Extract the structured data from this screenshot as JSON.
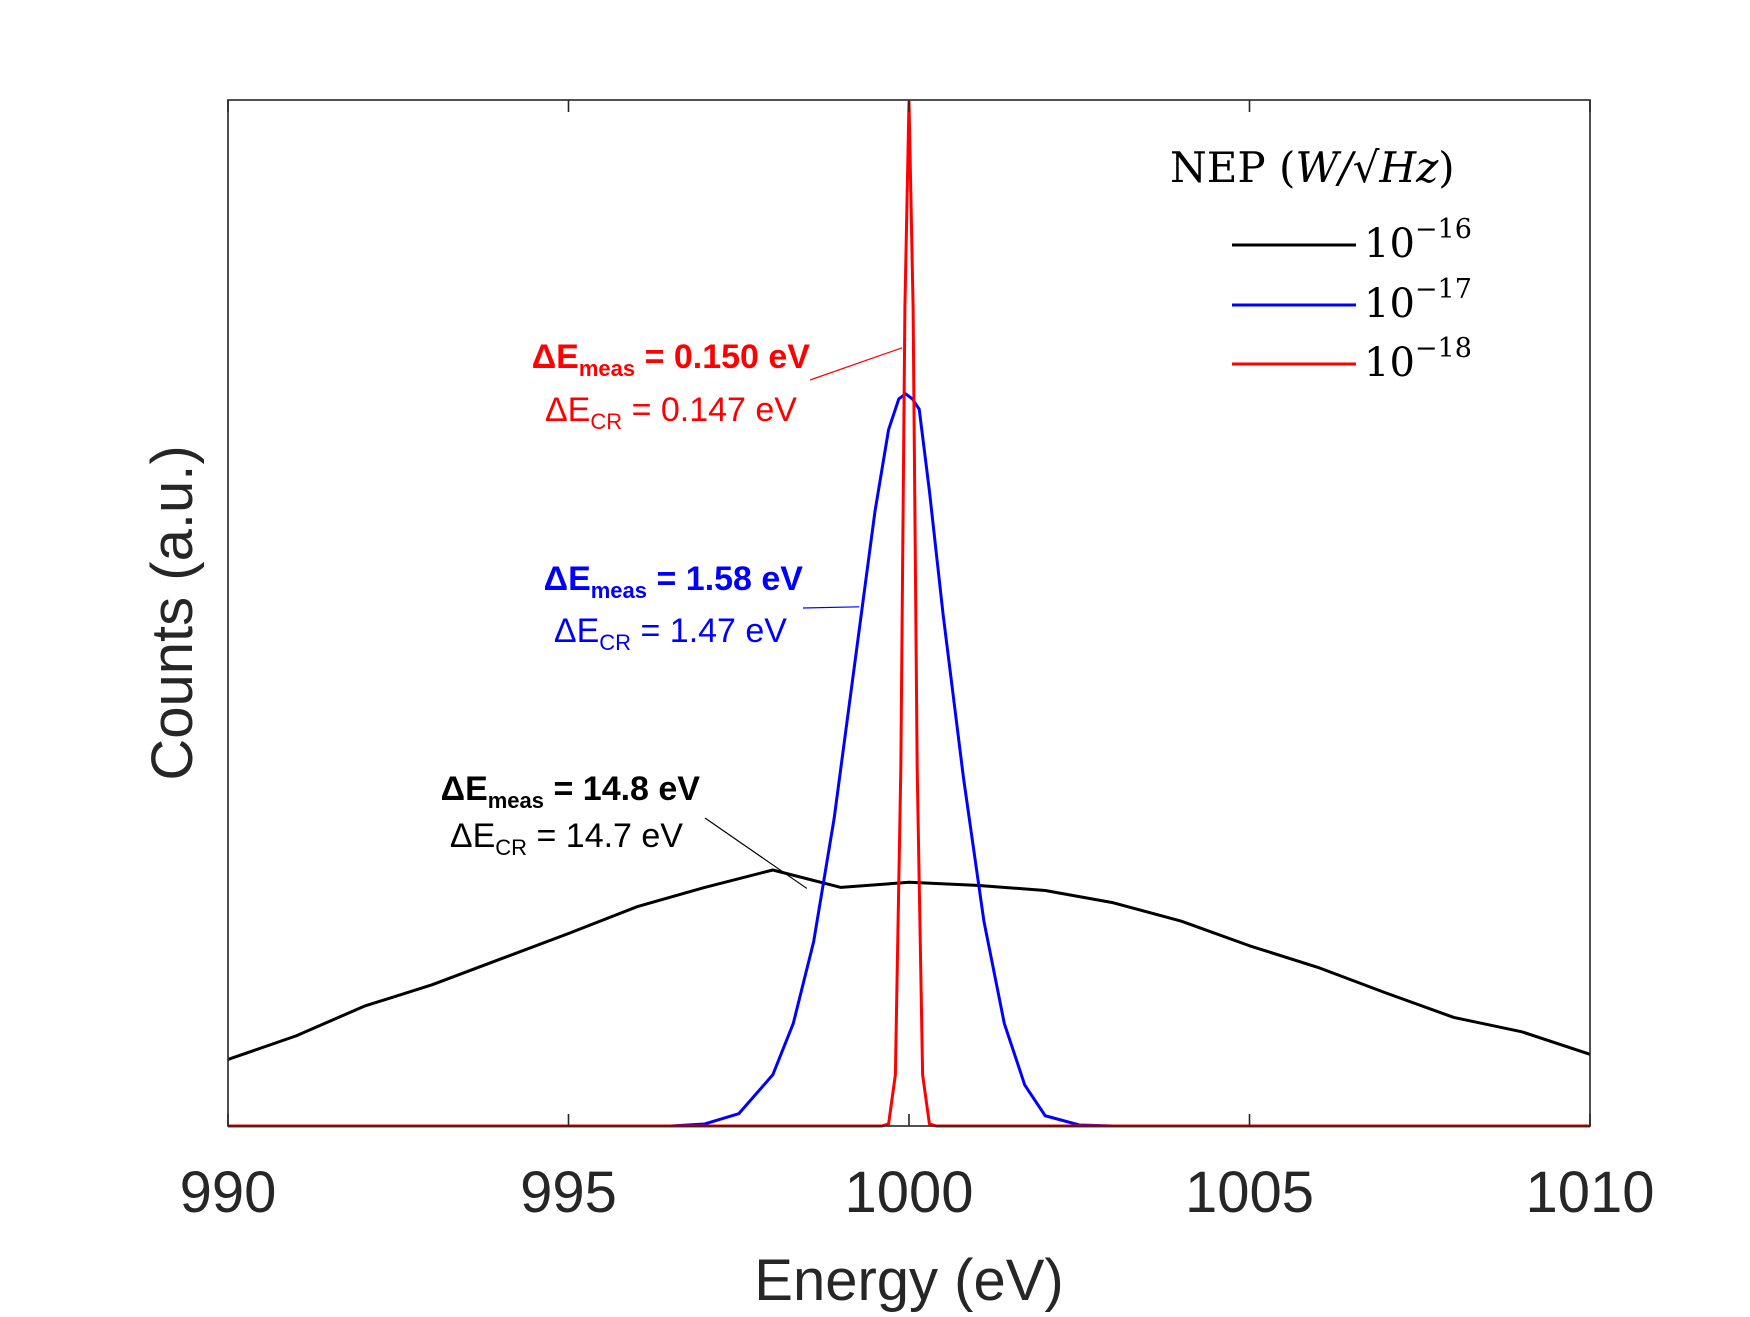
{
  "chart_data": {
    "type": "line",
    "title": "",
    "xlabel": "Energy (eV)",
    "ylabel": "Counts (a.u.)",
    "xlim": [
      990,
      1010
    ],
    "ylim": [
      0,
      1
    ],
    "x_ticks": [
      990,
      995,
      1000,
      1005,
      1010
    ],
    "x_tick_labels": [
      "990",
      "995",
      "1000",
      "1005",
      "1010"
    ],
    "y_ticks_shown": false,
    "grid": false,
    "legend": {
      "placement": "top-right",
      "title_prefix": "NEP (",
      "title_unit": "W/√Hz",
      "title_suffix": ")",
      "entries": [
        {
          "base": "10",
          "exponent": "−16",
          "color": "#000000"
        },
        {
          "base": "10",
          "exponent": "−17",
          "color": "#0000ff"
        },
        {
          "base": "10",
          "exponent": "−18",
          "color": "#ff0000"
        }
      ]
    },
    "series": [
      {
        "name": "NEP 1e-16",
        "color": "#000000",
        "x": [
          990,
          991,
          992,
          993,
          994,
          995,
          996,
          997,
          998,
          999,
          1000,
          1001,
          1002,
          1003,
          1004,
          1005,
          1006,
          1007,
          1008,
          1009,
          1010
        ],
        "y": [
          0.065,
          0.088,
          0.117,
          0.138,
          0.163,
          0.188,
          0.214,
          0.233,
          0.25,
          0.233,
          0.238,
          0.235,
          0.23,
          0.218,
          0.2,
          0.176,
          0.155,
          0.13,
          0.106,
          0.092,
          0.07
        ]
      },
      {
        "name": "NEP 1e-17",
        "color": "#0000ff",
        "x": [
          996.5,
          997,
          997.5,
          998,
          998.3,
          998.6,
          998.9,
          999.2,
          999.5,
          999.7,
          999.85,
          999.95,
          1000.05,
          1000.15,
          1000.3,
          1000.5,
          1000.8,
          1001.1,
          1001.4,
          1001.7,
          1002,
          1002.5,
          1003
        ],
        "y": [
          0,
          0.002,
          0.012,
          0.05,
          0.1,
          0.18,
          0.3,
          0.45,
          0.6,
          0.68,
          0.71,
          0.715,
          0.71,
          0.7,
          0.62,
          0.5,
          0.34,
          0.2,
          0.1,
          0.04,
          0.01,
          0.001,
          0
        ]
      },
      {
        "name": "NEP 1e-18",
        "color": "#ff0000",
        "x": [
          999.6,
          999.7,
          999.8,
          999.88,
          999.94,
          1000,
          1000.06,
          1000.12,
          1000.2,
          1000.3,
          1000.4
        ],
        "y": [
          0,
          0.002,
          0.05,
          0.35,
          0.8,
          1.0,
          0.8,
          0.35,
          0.05,
          0.002,
          0
        ]
      }
    ],
    "annotations": [
      {
        "series": "NEP 1e-18",
        "meas_label": "ΔE",
        "meas_sub": "meas",
        "meas_value": " = 0.150 eV",
        "cr_label": "ΔE",
        "cr_sub": "CR",
        "cr_value": " = 0.147 eV",
        "color": "#ff0000",
        "pointer_x": 999.9,
        "pointer_y": 0.76
      },
      {
        "series": "NEP 1e-17",
        "meas_label": "ΔE",
        "meas_sub": "meas",
        "meas_value": " = 1.58 eV",
        "cr_label": "ΔE",
        "cr_sub": "CR",
        "cr_value": " = 1.47 eV",
        "color": "#0000ff",
        "pointer_x": 999.27,
        "pointer_y": 0.507
      },
      {
        "series": "NEP 1e-16",
        "meas_label": "ΔE",
        "meas_sub": "meas",
        "meas_value": " = 14.8 eV",
        "cr_label": "ΔE",
        "cr_sub": "CR",
        "cr_value": " = 14.7 eV",
        "color": "#000000",
        "pointer_x": 998.5,
        "pointer_y": 0.232
      }
    ]
  }
}
